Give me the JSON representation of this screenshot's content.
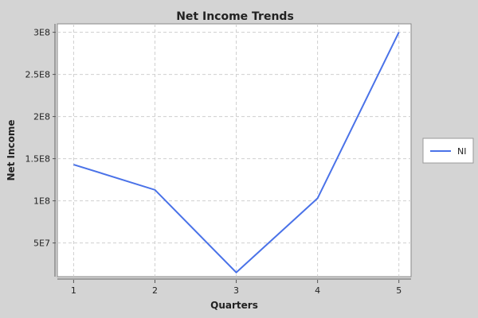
{
  "chart_data": {
    "type": "line",
    "title": "Net Income Trends",
    "xlabel": "Quarters",
    "ylabel": "Net Income",
    "x": [
      1,
      2,
      3,
      4,
      5
    ],
    "x_ticks": [
      "1",
      "2",
      "3",
      "4",
      "5"
    ],
    "xlim": [
      0.8,
      5.15
    ],
    "ylim": [
      10000000,
      310000000
    ],
    "y_ticks": [
      {
        "value": 50000000,
        "label": "5E7"
      },
      {
        "value": 100000000,
        "label": "1E8"
      },
      {
        "value": 150000000,
        "label": "1.5E8"
      },
      {
        "value": 200000000,
        "label": "2E8"
      },
      {
        "value": 250000000,
        "label": "2.5E8"
      },
      {
        "value": 300000000,
        "label": "3E8"
      }
    ],
    "series": [
      {
        "name": "NI",
        "color": "#4a72e8",
        "values": [
          143000000,
          113000000,
          15000000,
          103000000,
          300000000
        ]
      }
    ],
    "grid": true,
    "legend_position": "right",
    "colors": {
      "background": "#d4d4d4",
      "plot_background": "#ffffff",
      "grid": "#cfcfcf"
    }
  }
}
